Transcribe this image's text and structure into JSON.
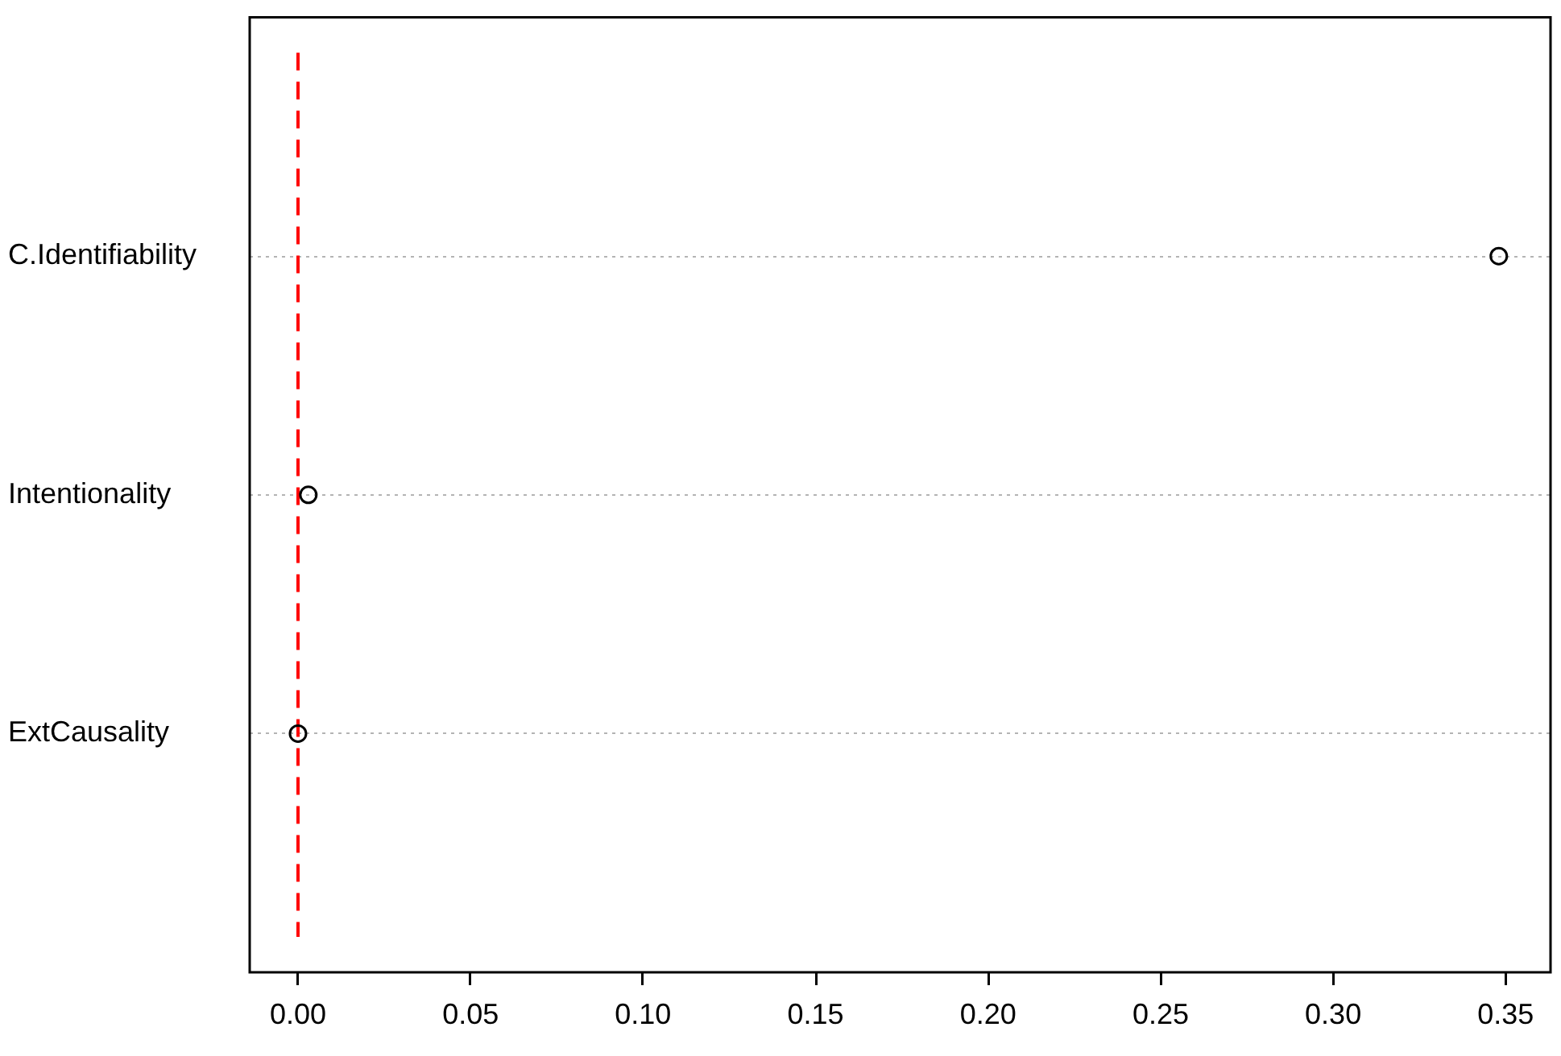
{
  "chart_data": {
    "type": "scatter",
    "orientation": "horizontal",
    "categories": [
      "C.Identifiability",
      "Intentionality",
      "ExtCausality"
    ],
    "values": [
      0.348,
      0.003,
      0
    ],
    "color": "#000000",
    "marker": "circle",
    "xlim": [
      -0.014,
      0.363
    ],
    "xticks": [
      {
        "value": 0,
        "label": "0.00"
      },
      {
        "value": 0.05,
        "label": "0.05"
      },
      {
        "value": 0.1,
        "label": "0.10"
      },
      {
        "value": 0.15,
        "label": "0.15"
      },
      {
        "value": 0.2,
        "label": "0.20"
      },
      {
        "value": 0.25,
        "label": "0.25"
      },
      {
        "value": 0.3,
        "label": "0.30"
      },
      {
        "value": 0.35,
        "label": "0.35"
      }
    ],
    "grid": "y",
    "ref_lines": [
      {
        "axis": "x",
        "value": 0,
        "color": "#ff0000",
        "line_style": "dashed"
      }
    ]
  }
}
